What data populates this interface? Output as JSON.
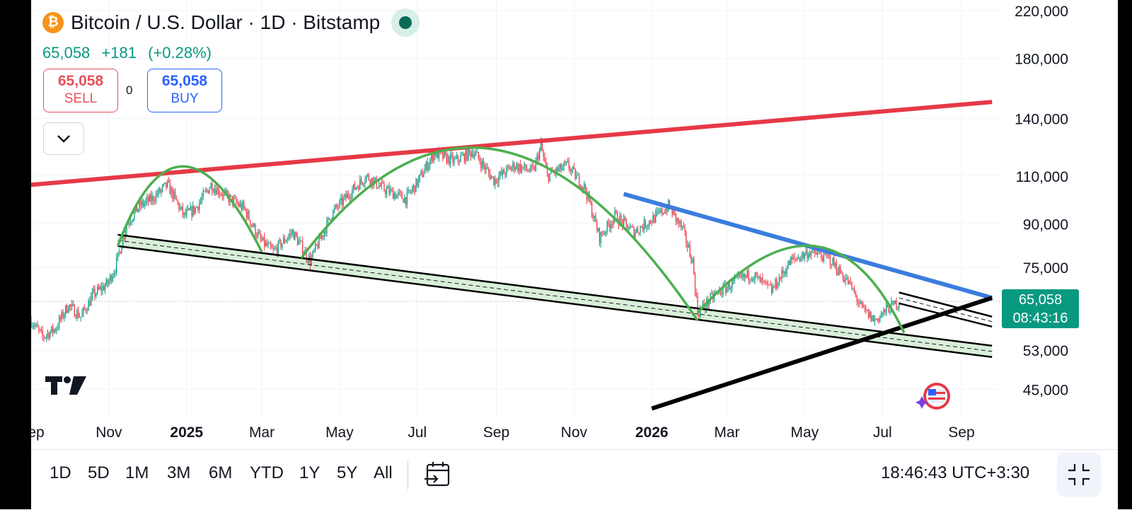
{
  "header": {
    "title": "Bitcoin / U.S. Dollar · 1D · Bitstamp",
    "coin_glyph": "₿",
    "last_price": "65,058",
    "change": "+181",
    "change_pct": "(+0.28%)",
    "accent_up": "#089981"
  },
  "trade": {
    "sell_price": "65,058",
    "sell_label": "SELL",
    "buy_price": "65,058",
    "buy_label": "BUY",
    "spread": "0"
  },
  "icons": {
    "collapse": "chevron-down-icon",
    "calendar": "goto-date-icon",
    "fullscreen": "exit-fullscreen-icon",
    "logo": "tradingview-logo",
    "extension": "flag-extension-icon"
  },
  "price_tag": {
    "price": "65,058",
    "countdown": "08:43:16"
  },
  "ranges": [
    "1D",
    "5D",
    "1M",
    "3M",
    "6M",
    "YTD",
    "1Y",
    "5Y",
    "All"
  ],
  "clock": "18:46:43 UTC+3:30",
  "chart_data": {
    "type": "candlestick",
    "y_scale": "log",
    "ylim": [
      40000,
      230000
    ],
    "xlim": [
      "2024-09-01",
      "2026-10-01"
    ],
    "y_ticks": [
      {
        "value": 220000,
        "label": "220,000"
      },
      {
        "value": 180000,
        "label": "180,000"
      },
      {
        "value": 140000,
        "label": "140,000"
      },
      {
        "value": 110000,
        "label": "110,000"
      },
      {
        "value": 90000,
        "label": "90,000"
      },
      {
        "value": 75000,
        "label": "75,000"
      },
      {
        "value": 53000,
        "label": "53,000"
      },
      {
        "value": 45000,
        "label": "45,000"
      }
    ],
    "x_ticks": [
      {
        "date": "2024-09-01",
        "label": "Sep",
        "bold": false
      },
      {
        "date": "2024-11-01",
        "label": "Nov",
        "bold": false
      },
      {
        "date": "2025-01-01",
        "label": "2025",
        "bold": true
      },
      {
        "date": "2025-03-01",
        "label": "Mar",
        "bold": false
      },
      {
        "date": "2025-05-01",
        "label": "May",
        "bold": false
      },
      {
        "date": "2025-07-01",
        "label": "Jul",
        "bold": false
      },
      {
        "date": "2025-09-01",
        "label": "Sep",
        "bold": false
      },
      {
        "date": "2025-11-01",
        "label": "Nov",
        "bold": false
      },
      {
        "date": "2026-01-01",
        "label": "2026",
        "bold": true
      },
      {
        "date": "2026-03-01",
        "label": "Mar",
        "bold": false
      },
      {
        "date": "2026-05-01",
        "label": "May",
        "bold": false
      },
      {
        "date": "2026-07-01",
        "label": "Jul",
        "bold": false
      },
      {
        "date": "2026-09-01",
        "label": "Sep",
        "bold": false
      }
    ],
    "price_path": [
      [
        "2024-09-01",
        60000
      ],
      [
        "2024-09-10",
        56000
      ],
      [
        "2024-09-20",
        58000
      ],
      [
        "2024-09-30",
        64000
      ],
      [
        "2024-10-10",
        61000
      ],
      [
        "2024-10-20",
        67000
      ],
      [
        "2024-10-31",
        70000
      ],
      [
        "2024-11-06",
        75000
      ],
      [
        "2024-11-15",
        90000
      ],
      [
        "2024-11-25",
        97000
      ],
      [
        "2024-12-05",
        100000
      ],
      [
        "2024-12-17",
        106000
      ],
      [
        "2024-12-30",
        93000
      ],
      [
        "2025-01-08",
        96000
      ],
      [
        "2025-01-20",
        106000
      ],
      [
        "2025-02-01",
        101000
      ],
      [
        "2025-02-15",
        96000
      ],
      [
        "2025-02-28",
        84000
      ],
      [
        "2025-03-10",
        80000
      ],
      [
        "2025-03-25",
        87000
      ],
      [
        "2025-04-08",
        77000
      ],
      [
        "2025-04-25",
        94000
      ],
      [
        "2025-05-10",
        103000
      ],
      [
        "2025-05-22",
        110000
      ],
      [
        "2025-06-05",
        104000
      ],
      [
        "2025-06-22",
        100000
      ],
      [
        "2025-07-01",
        107000
      ],
      [
        "2025-07-14",
        121000
      ],
      [
        "2025-07-30",
        117000
      ],
      [
        "2025-08-14",
        122000
      ],
      [
        "2025-08-30",
        108000
      ],
      [
        "2025-09-15",
        115000
      ],
      [
        "2025-09-30",
        112000
      ],
      [
        "2025-10-06",
        125000
      ],
      [
        "2025-10-11",
        110000
      ],
      [
        "2025-10-27",
        115000
      ],
      [
        "2025-11-10",
        104000
      ],
      [
        "2025-11-21",
        85000
      ],
      [
        "2025-12-03",
        93000
      ],
      [
        "2025-12-18",
        87000
      ],
      [
        "2026-01-05",
        93000
      ],
      [
        "2026-01-14",
        97000
      ],
      [
        "2026-01-25",
        88000
      ],
      [
        "2026-02-02",
        77000
      ],
      [
        "2026-02-06",
        62000
      ],
      [
        "2026-02-20",
        67000
      ],
      [
        "2026-03-05",
        70000
      ],
      [
        "2026-03-20",
        73000
      ],
      [
        "2026-04-05",
        68000
      ],
      [
        "2026-04-20",
        77000
      ],
      [
        "2026-05-05",
        80000
      ],
      [
        "2026-05-20",
        78000
      ],
      [
        "2026-06-05",
        70000
      ],
      [
        "2026-06-15",
        63000
      ],
      [
        "2026-06-25",
        60000
      ],
      [
        "2026-07-05",
        63000
      ],
      [
        "2026-07-15",
        65058
      ]
    ],
    "last_price": 65058,
    "drawings": [
      {
        "kind": "trendline",
        "color": "#e63946",
        "points": [
          [
            "2024-09-01",
            106000
          ],
          [
            "2026-09-25",
            150000
          ]
        ]
      },
      {
        "kind": "trendline",
        "color": "#3b7ddd",
        "points": [
          [
            "2025-12-10",
            102000
          ],
          [
            "2026-09-25",
            66000
          ]
        ]
      },
      {
        "kind": "trendline",
        "color": "#000000",
        "points": [
          [
            "2026-01-01",
            41500
          ],
          [
            "2026-09-25",
            66000
          ]
        ]
      },
      {
        "kind": "channel",
        "color": "#000000",
        "fill": "#d4ecd2",
        "upper": [
          [
            "2024-11-08",
            86000
          ],
          [
            "2026-09-25",
            54000
          ]
        ],
        "lower": [
          [
            "2024-11-08",
            82000
          ],
          [
            "2026-09-25",
            51500
          ]
        ]
      },
      {
        "kind": "channel",
        "color": "#000000",
        "fill": "none",
        "upper": [
          [
            "2026-07-14",
            67500
          ],
          [
            "2026-09-25",
            61000
          ]
        ],
        "lower": [
          [
            "2026-07-14",
            64500
          ],
          [
            "2026-09-25",
            58500
          ]
        ]
      },
      {
        "kind": "arc",
        "color": "#4caf50",
        "points": [
          [
            "2024-11-08",
            82000
          ],
          [
            "2024-12-30",
            114500
          ],
          [
            "2025-03-01",
            80000
          ]
        ]
      },
      {
        "kind": "arc",
        "color": "#4caf50",
        "points": [
          [
            "2025-04-01",
            78000
          ],
          [
            "2025-08-30",
            123000
          ],
          [
            "2026-02-06",
            60000
          ]
        ]
      },
      {
        "kind": "arc",
        "color": "#4caf50",
        "points": [
          [
            "2026-02-06",
            62000
          ],
          [
            "2026-05-08",
            82000
          ],
          [
            "2026-07-18",
            57000
          ]
        ]
      }
    ]
  }
}
